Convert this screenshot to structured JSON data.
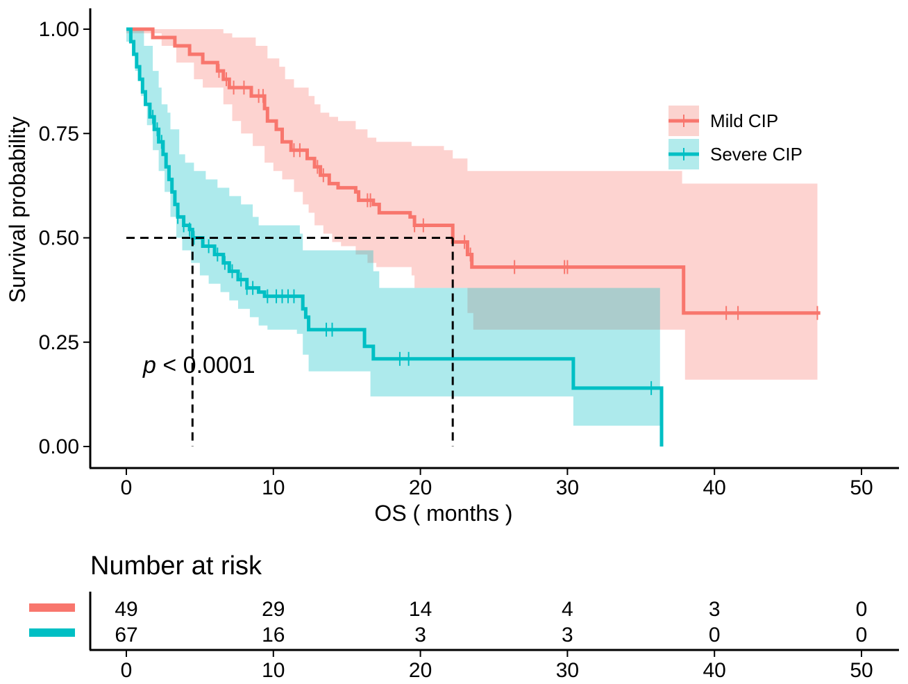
{
  "chart_data": {
    "type": "kaplan-meier",
    "xlabel": "OS ( months )",
    "ylabel": "Survival probability",
    "xlim": [
      0,
      50
    ],
    "ylim": [
      0,
      1
    ],
    "x_ticks": [
      0,
      10,
      20,
      30,
      40,
      50
    ],
    "x_tick_labels": [
      "0",
      "10",
      "20",
      "30",
      "40",
      "50"
    ],
    "y_ticks": [
      0,
      0.25,
      0.5,
      0.75,
      1.0
    ],
    "y_tick_labels": [
      "0.00",
      "0.25",
      "0.50",
      "0.75",
      "1.00"
    ],
    "p_value_prefix": "p",
    "p_value_text": " < 0.0001",
    "median_reference": {
      "y": 0.5,
      "x_values": [
        4.5,
        22.2
      ]
    },
    "series": [
      {
        "name": "Mild CIP",
        "color": "#F8766D",
        "band_color": "#FBD3CF",
        "steps": [
          [
            0,
            1.0
          ],
          [
            0.4,
            1.0
          ],
          [
            1.8,
            0.98
          ],
          [
            3.3,
            0.96
          ],
          [
            4.3,
            0.94
          ],
          [
            5.2,
            0.92
          ],
          [
            6.2,
            0.9
          ],
          [
            6.6,
            0.88
          ],
          [
            7.0,
            0.86
          ],
          [
            8.5,
            0.84
          ],
          [
            9.4,
            0.81
          ],
          [
            9.6,
            0.78
          ],
          [
            10.2,
            0.76
          ],
          [
            10.6,
            0.73
          ],
          [
            11.2,
            0.71
          ],
          [
            12.3,
            0.69
          ],
          [
            12.8,
            0.67
          ],
          [
            13.2,
            0.65
          ],
          [
            13.8,
            0.63
          ],
          [
            14.4,
            0.62
          ],
          [
            15.6,
            0.61
          ],
          [
            15.8,
            0.59
          ],
          [
            16.8,
            0.58
          ],
          [
            17.2,
            0.56
          ],
          [
            19.3,
            0.55
          ],
          [
            19.6,
            0.53
          ],
          [
            22.2,
            0.49
          ],
          [
            23.2,
            0.46
          ],
          [
            23.5,
            0.43
          ],
          [
            37.8,
            0.43
          ],
          [
            37.9,
            0.32
          ],
          [
            47.2,
            0.32
          ]
        ],
        "ci_lower": [
          [
            0,
            0.99
          ],
          [
            2.4,
            0.96
          ],
          [
            3.4,
            0.92
          ],
          [
            4.6,
            0.88
          ],
          [
            5.2,
            0.86
          ],
          [
            6.6,
            0.82
          ],
          [
            7.2,
            0.78
          ],
          [
            7.8,
            0.75
          ],
          [
            8.6,
            0.72
          ],
          [
            9.4,
            0.68
          ],
          [
            10.0,
            0.66
          ],
          [
            10.6,
            0.64
          ],
          [
            11.4,
            0.61
          ],
          [
            12.0,
            0.58
          ],
          [
            12.4,
            0.56
          ],
          [
            12.8,
            0.53
          ],
          [
            13.4,
            0.51
          ],
          [
            14.0,
            0.49
          ],
          [
            14.6,
            0.48
          ],
          [
            15.6,
            0.46
          ],
          [
            16.4,
            0.44
          ],
          [
            17.0,
            0.43
          ],
          [
            19.4,
            0.41
          ],
          [
            19.6,
            0.38
          ],
          [
            23.2,
            0.32
          ],
          [
            23.6,
            0.28
          ],
          [
            37.8,
            0.28
          ],
          [
            38.0,
            0.16
          ],
          [
            47.0,
            0.16
          ]
        ],
        "ci_upper": [
          [
            0,
            1.0
          ],
          [
            6.2,
            1.0
          ],
          [
            6.6,
            0.99
          ],
          [
            7.2,
            0.98
          ],
          [
            8.8,
            0.96
          ],
          [
            9.6,
            0.93
          ],
          [
            10.4,
            0.91
          ],
          [
            10.8,
            0.88
          ],
          [
            11.4,
            0.86
          ],
          [
            12.4,
            0.84
          ],
          [
            12.8,
            0.82
          ],
          [
            13.2,
            0.8
          ],
          [
            13.8,
            0.79
          ],
          [
            14.4,
            0.78
          ],
          [
            15.6,
            0.76
          ],
          [
            16.4,
            0.74
          ],
          [
            17.0,
            0.73
          ],
          [
            19.4,
            0.72
          ],
          [
            21.6,
            0.71
          ],
          [
            22.2,
            0.69
          ],
          [
            23.2,
            0.66
          ],
          [
            36.6,
            0.66
          ],
          [
            37.8,
            0.63
          ],
          [
            47.0,
            0.63
          ],
          [
            47.0,
            0.65
          ]
        ],
        "censor_x": [
          6.3,
          6.8,
          7.3,
          8.0,
          9.0,
          9.3,
          11.4,
          11.8,
          13.0,
          13.4,
          16.4,
          16.6,
          19.6,
          20.2,
          23.0,
          23.4,
          26.4,
          29.8,
          30.0,
          40.8,
          41.6,
          47.0
        ]
      },
      {
        "name": "Severe CIP",
        "color": "#00BFC4",
        "band_color": "#B2EBEC",
        "steps": [
          [
            0,
            1.0
          ],
          [
            0.3,
            0.97
          ],
          [
            0.5,
            0.94
          ],
          [
            0.7,
            0.91
          ],
          [
            0.9,
            0.88
          ],
          [
            1.1,
            0.85
          ],
          [
            1.3,
            0.82
          ],
          [
            1.6,
            0.79
          ],
          [
            1.9,
            0.76
          ],
          [
            2.2,
            0.73
          ],
          [
            2.5,
            0.7
          ],
          [
            2.7,
            0.67
          ],
          [
            2.9,
            0.64
          ],
          [
            3.1,
            0.61
          ],
          [
            3.3,
            0.58
          ],
          [
            3.5,
            0.55
          ],
          [
            3.9,
            0.53
          ],
          [
            4.3,
            0.52
          ],
          [
            4.5,
            0.5
          ],
          [
            5.2,
            0.48
          ],
          [
            6.0,
            0.46
          ],
          [
            6.6,
            0.44
          ],
          [
            7.0,
            0.42
          ],
          [
            7.6,
            0.4
          ],
          [
            8.2,
            0.38
          ],
          [
            9.0,
            0.37
          ],
          [
            9.4,
            0.36
          ],
          [
            11.8,
            0.36
          ],
          [
            12.0,
            0.33
          ],
          [
            12.2,
            0.31
          ],
          [
            12.4,
            0.28
          ],
          [
            16.0,
            0.28
          ],
          [
            16.2,
            0.24
          ],
          [
            16.8,
            0.21
          ],
          [
            30.2,
            0.21
          ],
          [
            30.4,
            0.14
          ],
          [
            36.3,
            0.14
          ],
          [
            36.4,
            0.0
          ]
        ],
        "ci_lower": [
          [
            0,
            0.97
          ],
          [
            0.6,
            0.9
          ],
          [
            1.0,
            0.84
          ],
          [
            1.4,
            0.77
          ],
          [
            1.8,
            0.71
          ],
          [
            2.2,
            0.66
          ],
          [
            2.6,
            0.61
          ],
          [
            3.0,
            0.55
          ],
          [
            3.4,
            0.5
          ],
          [
            3.8,
            0.47
          ],
          [
            4.4,
            0.44
          ],
          [
            5.0,
            0.41
          ],
          [
            5.6,
            0.39
          ],
          [
            6.4,
            0.37
          ],
          [
            7.0,
            0.35
          ],
          [
            7.6,
            0.33
          ],
          [
            8.4,
            0.31
          ],
          [
            9.0,
            0.29
          ],
          [
            9.6,
            0.28
          ],
          [
            11.6,
            0.27
          ],
          [
            12.0,
            0.22
          ],
          [
            12.4,
            0.18
          ],
          [
            16.0,
            0.18
          ],
          [
            16.6,
            0.12
          ],
          [
            30.2,
            0.12
          ],
          [
            30.4,
            0.05
          ],
          [
            36.3,
            0.05
          ]
        ],
        "ci_upper": [
          [
            0,
            1.0
          ],
          [
            0.6,
            1.0
          ],
          [
            1.2,
            0.96
          ],
          [
            1.8,
            0.9
          ],
          [
            2.2,
            0.86
          ],
          [
            2.4,
            0.82
          ],
          [
            2.8,
            0.8
          ],
          [
            3.0,
            0.76
          ],
          [
            3.6,
            0.7
          ],
          [
            4.0,
            0.68
          ],
          [
            4.6,
            0.66
          ],
          [
            5.4,
            0.64
          ],
          [
            6.2,
            0.62
          ],
          [
            7.0,
            0.6
          ],
          [
            7.8,
            0.58
          ],
          [
            8.6,
            0.55
          ],
          [
            9.0,
            0.53
          ],
          [
            11.8,
            0.51
          ],
          [
            12.0,
            0.47
          ],
          [
            16.0,
            0.47
          ],
          [
            16.8,
            0.42
          ],
          [
            17.2,
            0.38
          ],
          [
            36.3,
            0.38
          ]
        ],
        "censor_x": [
          1.8,
          2.1,
          2.4,
          3.5,
          3.9,
          4.3,
          4.6,
          5.6,
          6.2,
          6.7,
          7.2,
          7.8,
          8.2,
          8.6,
          9.6,
          10.2,
          10.6,
          11.0,
          11.4,
          13.6,
          14.0,
          18.6,
          19.2,
          35.7
        ]
      }
    ],
    "risk_table": {
      "title": "Number at risk",
      "times": [
        0,
        10,
        20,
        30,
        40,
        50
      ],
      "tick_labels": [
        "0",
        "10",
        "20",
        "30",
        "40",
        "50"
      ],
      "rows": [
        {
          "name": "Mild CIP",
          "color": "#F8766D",
          "values": [
            "49",
            "29",
            "14",
            "4",
            "3",
            "0"
          ]
        },
        {
          "name": "Severe CIP",
          "color": "#00BFC4",
          "values": [
            "67",
            "16",
            "3",
            "3",
            "0",
            "0"
          ]
        }
      ]
    }
  }
}
